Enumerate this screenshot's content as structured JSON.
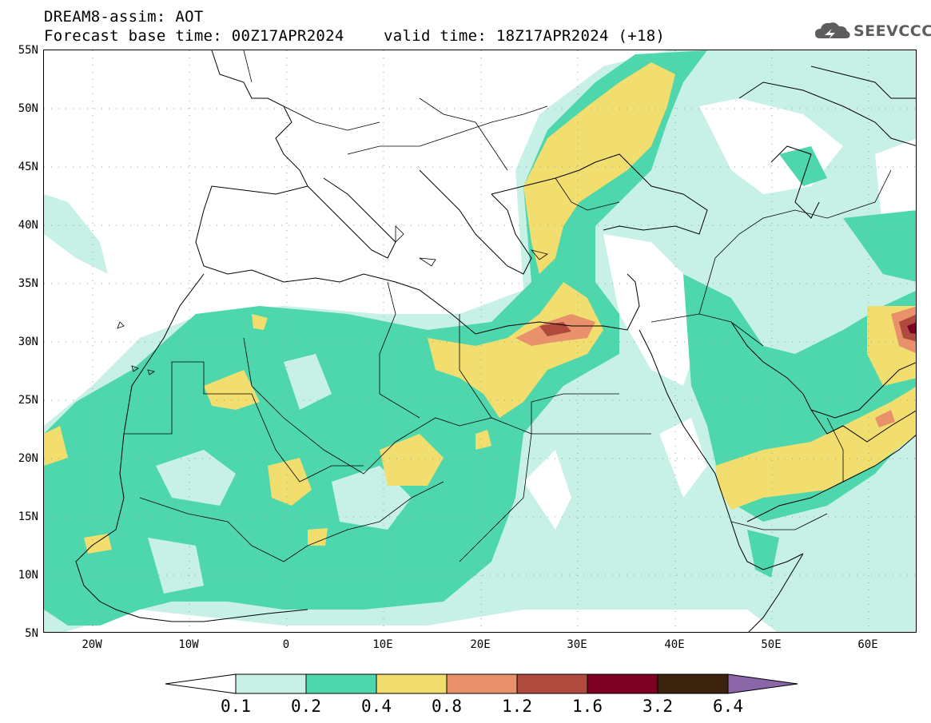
{
  "header": {
    "title": "DREAM8-assim: AOT",
    "base_time": "Forecast base time: 00Z17APR2024",
    "valid_time": "valid time: 18Z17APR2024 (+18)"
  },
  "logo": {
    "text": "SEEVCCC",
    "icon": "cloud-icon"
  },
  "map": {
    "variable": "AOT",
    "lon_range": [
      -25,
      65
    ],
    "lat_range": [
      5,
      55
    ],
    "grid": "dotted",
    "lat_labels": [
      "55N",
      "50N",
      "45N",
      "40N",
      "35N",
      "30N",
      "25N",
      "20N",
      "15N",
      "10N",
      "5N"
    ],
    "lon_labels": [
      "20W",
      "10W",
      "0",
      "10E",
      "20E",
      "30E",
      "40E",
      "50E",
      "60E"
    ]
  },
  "colorbar": {
    "levels": [
      "0.1",
      "0.2",
      "0.4",
      "0.8",
      "1.2",
      "1.6",
      "3.2",
      "6.4"
    ],
    "colors": [
      "#ffffff",
      "#c7f0e6",
      "#4ed7ac",
      "#f2de6e",
      "#e8916a",
      "#b0493e",
      "#7b0021",
      "#3a220d",
      "#8a66a8"
    ]
  }
}
